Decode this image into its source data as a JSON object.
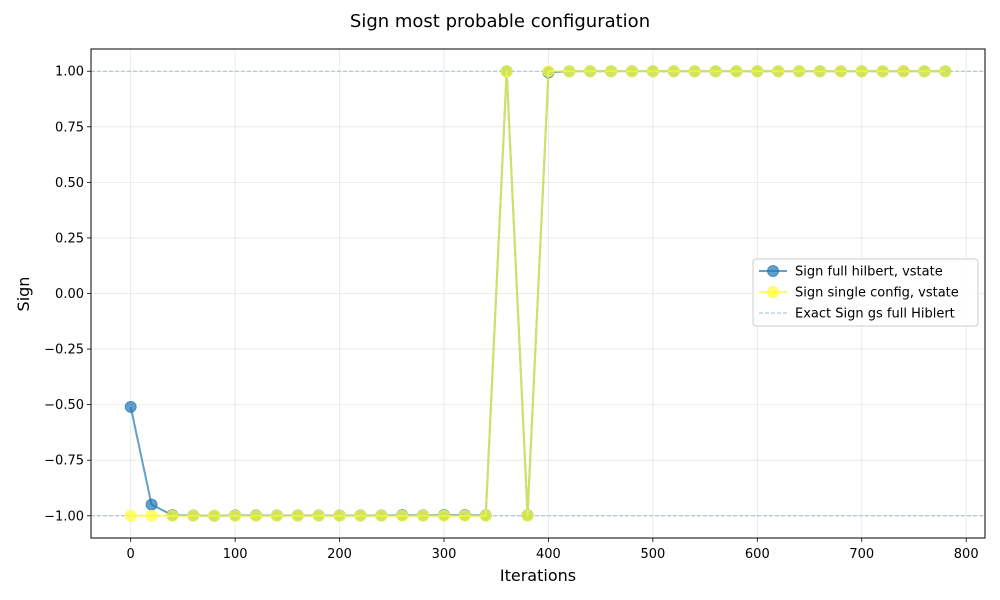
{
  "chart_data": {
    "type": "line",
    "title": "Sign most probable configuration",
    "xlabel": "Iterations",
    "ylabel": "Sign",
    "xlim": [
      -38,
      818
    ],
    "ylim": [
      -1.1,
      1.1
    ],
    "xticks": [
      0,
      100,
      200,
      300,
      400,
      500,
      600,
      700,
      800
    ],
    "yticks": [
      1.0,
      0.75,
      0.5,
      0.25,
      0.0,
      -0.25,
      -0.5,
      -0.75,
      -1.0
    ],
    "ytick_labels": [
      "1.00",
      "0.75",
      "0.50",
      "0.25",
      "0.00",
      "−0.25",
      "−0.50",
      "−0.75",
      "−1.00"
    ],
    "grid": true,
    "legend_position": "center-right",
    "series": [
      {
        "name": "Sign full hilbert, vstate",
        "color": "#1f77b4",
        "marker": "circle",
        "x": [
          0,
          20,
          40,
          60,
          80,
          100,
          120,
          140,
          160,
          180,
          200,
          220,
          240,
          260,
          280,
          300,
          320,
          340,
          360,
          380,
          400,
          420,
          440,
          460,
          480,
          500,
          520,
          540,
          560,
          580,
          600,
          620,
          640,
          660,
          680,
          700,
          720,
          740,
          760,
          780
        ],
        "y": [
          -0.51,
          -0.95,
          -0.997,
          -0.999,
          -1,
          -0.998,
          -0.998,
          -0.999,
          -0.999,
          -0.999,
          -0.999,
          -0.999,
          -0.999,
          -0.997,
          -0.998,
          -0.997,
          -0.997,
          -0.998,
          1,
          -0.998,
          0.995,
          1,
          1,
          1,
          1,
          1,
          1,
          1,
          1,
          1,
          1,
          1,
          1,
          1,
          1,
          1,
          1,
          1,
          1,
          1
        ]
      },
      {
        "name": "Sign single config, vstate",
        "color": "#ffff33",
        "marker": "circle",
        "x": [
          0,
          20,
          40,
          60,
          80,
          100,
          120,
          140,
          160,
          180,
          200,
          220,
          240,
          260,
          280,
          300,
          320,
          340,
          360,
          380,
          400,
          420,
          440,
          460,
          480,
          500,
          520,
          540,
          560,
          580,
          600,
          620,
          640,
          660,
          680,
          700,
          720,
          740,
          760,
          780
        ],
        "y": [
          -1,
          -1,
          -1,
          -1,
          -1,
          -1,
          -1,
          -1,
          -1,
          -1,
          -1,
          -1,
          -1,
          -1,
          -1,
          -1,
          -1,
          -1,
          1,
          -1,
          1,
          1,
          1,
          1,
          1,
          1,
          1,
          1,
          1,
          1,
          1,
          1,
          1,
          1,
          1,
          1,
          1,
          1,
          1,
          1
        ]
      },
      {
        "name": "Exact Sign gs full Hiblert",
        "color": "#9bbcd8",
        "style": "dashed",
        "hlines": [
          1,
          -1
        ]
      }
    ]
  }
}
